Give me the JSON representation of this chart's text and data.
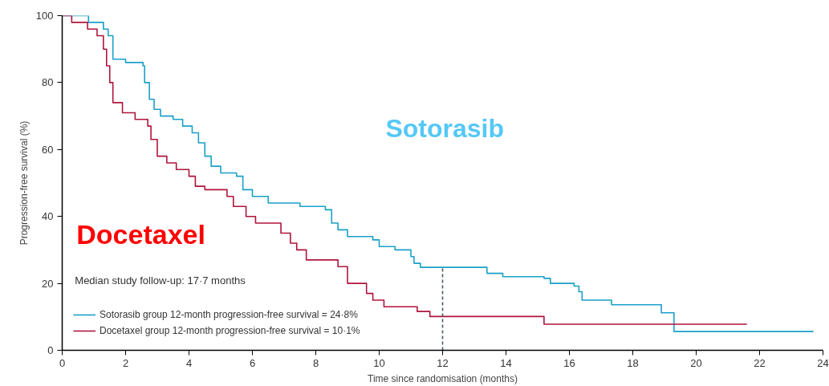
{
  "chart_data": {
    "type": "step",
    "xlabel": "Time since randomisation (months)",
    "ylabel": "Progression-free survival (%)",
    "xlim": [
      0,
      24
    ],
    "ylim": [
      0,
      100
    ],
    "xticks": [
      0,
      2,
      4,
      6,
      8,
      10,
      12,
      14,
      16,
      18,
      20,
      22,
      24
    ],
    "yticks": [
      0,
      20,
      40,
      60,
      80,
      100
    ],
    "grid": false,
    "legend": "bottom left",
    "marker": "none",
    "line_style": "solid",
    "annotations": [
      "Sotorasib",
      "Docetaxel",
      "Median study follow-up: 17·7 months"
    ],
    "series": [
      {
        "name": "Sotorasib group 12-month progression-free survival = 24·8%",
        "color": "#1aa0c8",
        "x": [
          0,
          0.83,
          1.3,
          1.45,
          1.6,
          2.0,
          2.55,
          2.6,
          2.75,
          2.9,
          3.1,
          3.5,
          3.8,
          4.1,
          4.3,
          4.5,
          4.7,
          5.0,
          5.5,
          5.7,
          6.0,
          6.5,
          7.5,
          8.3,
          8.5,
          8.7,
          9.0,
          9.8,
          10.0,
          10.5,
          11.0,
          11.1,
          11.3,
          13.2,
          13.4,
          13.9,
          15.2,
          15.4,
          16.15,
          16.3,
          16.4,
          17.33,
          18.9,
          19.3,
          23.7
        ],
        "values": [
          100,
          98,
          96,
          94,
          87,
          86,
          85,
          80,
          75,
          72,
          70,
          69,
          67,
          65,
          62,
          58,
          55,
          53,
          52,
          48,
          46,
          44,
          43,
          42,
          38,
          36,
          34,
          33,
          31,
          30,
          28,
          26,
          24.8,
          24.8,
          23,
          22,
          21.5,
          20,
          19.2,
          17.5,
          15,
          13.6,
          11.2,
          5.6,
          5.6
        ]
      },
      {
        "name": "Docetaxel group 12-month progression-free survival = 10·1%",
        "color": "#b0143c",
        "x": [
          0,
          0.3,
          0.8,
          1.1,
          1.3,
          1.4,
          1.5,
          1.6,
          1.9,
          2.3,
          2.7,
          2.8,
          3.0,
          3.3,
          3.6,
          4.0,
          4.2,
          4.5,
          5.2,
          5.4,
          5.8,
          6.1,
          6.9,
          7.2,
          7.4,
          7.7,
          8.7,
          9.0,
          9.6,
          9.8,
          10.15,
          11.2,
          11.6,
          15.2,
          21.6
        ],
        "values": [
          100,
          98,
          96,
          94,
          90,
          85,
          80,
          74,
          71,
          69,
          67,
          63,
          58,
          56,
          54,
          52,
          49,
          48,
          46,
          43,
          40,
          38,
          35,
          32,
          30,
          27,
          25,
          20,
          17,
          15,
          13,
          11.6,
          10.1,
          7.8,
          7.8
        ]
      },
      {
        "type": "line",
        "color": "#4a5a66",
        "line_style": "dashed",
        "x": [
          12,
          12
        ],
        "values": [
          0,
          24.8
        ]
      }
    ]
  }
}
